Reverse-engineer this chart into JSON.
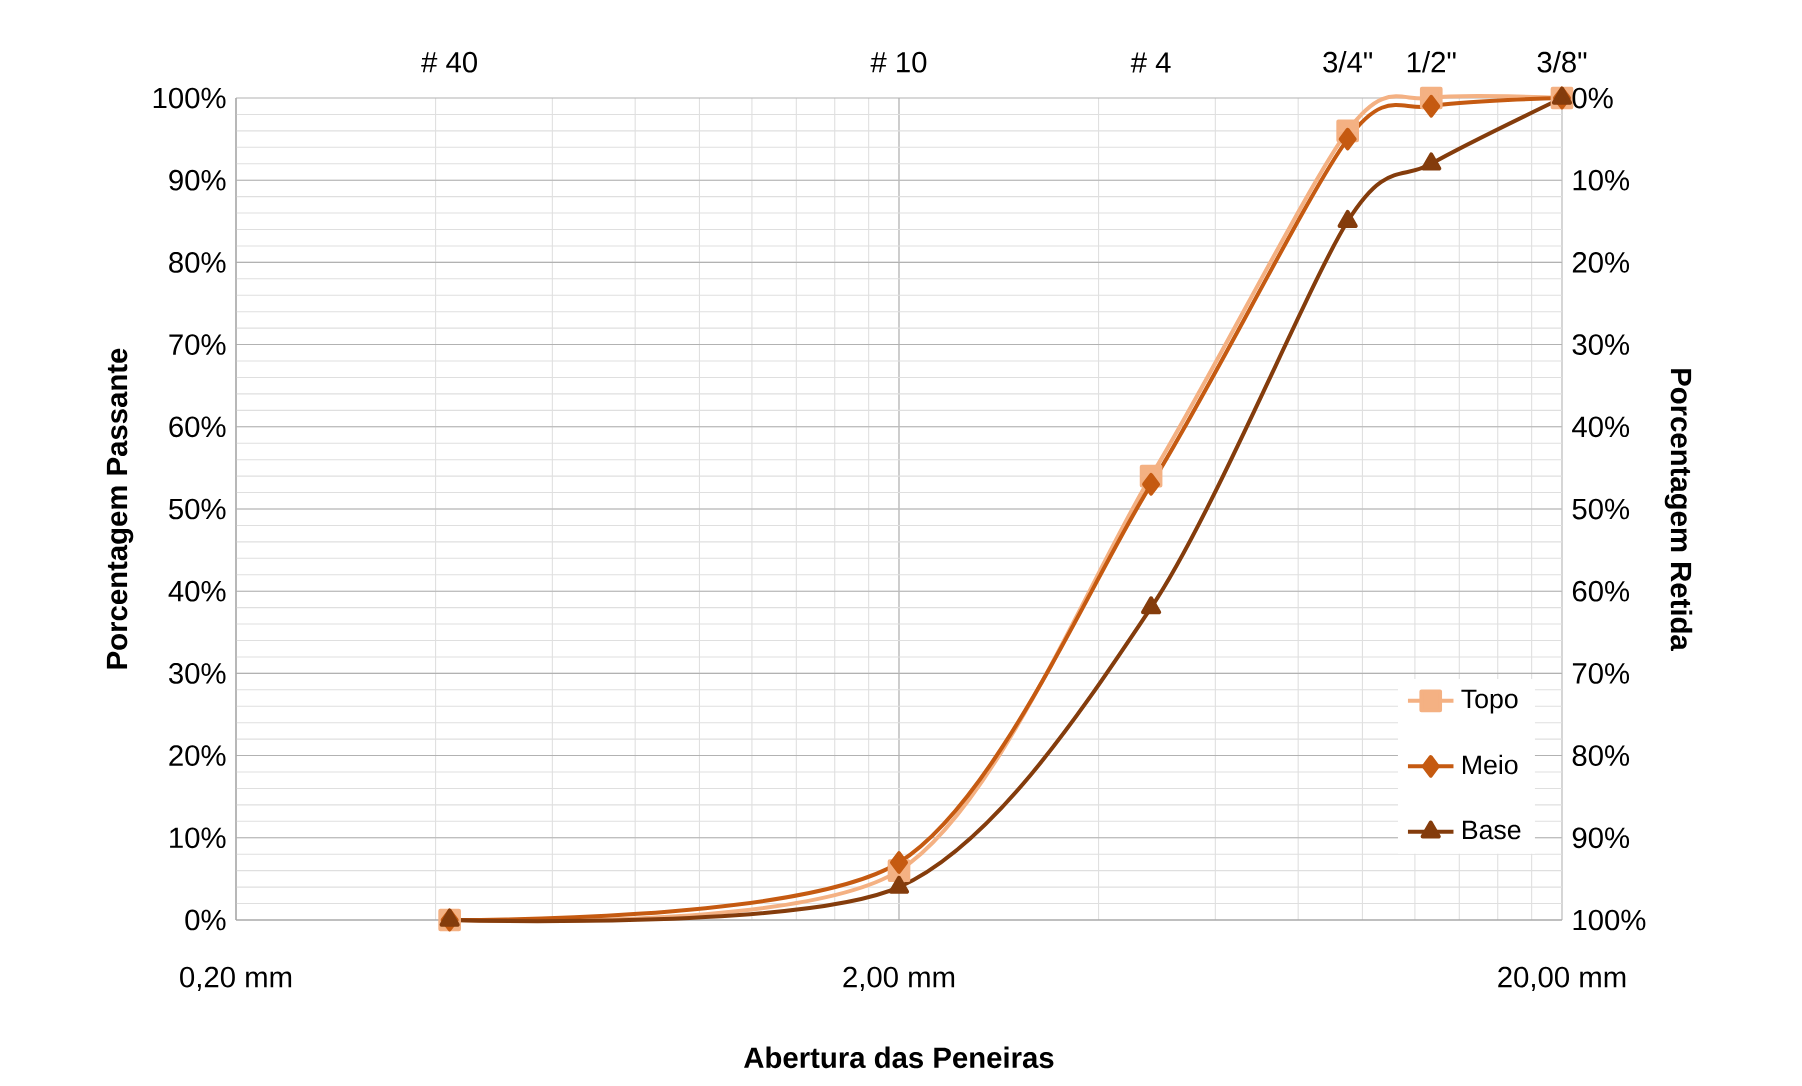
{
  "chart_data": {
    "type": "line",
    "xlabel": "Abertura das Peneiras",
    "ylabel": "Porcentagem Passante",
    "y2label": "Porcentagem Retida",
    "log": "x",
    "x": [
      0.42,
      2.0,
      4.8,
      9.5,
      12.7,
      20
    ],
    "series": [
      {
        "name": "Topo",
        "color": "#f4b183",
        "marker": "square",
        "values": [
          0,
          6,
          54,
          96,
          100,
          100
        ]
      },
      {
        "name": "Meio",
        "color": "#c55a11",
        "marker": "diamond",
        "values": [
          0,
          7,
          53,
          95,
          99,
          100
        ]
      },
      {
        "name": "Base",
        "color": "#843c0c",
        "marker": "triangle",
        "values": [
          0,
          4,
          38,
          85,
          92,
          100
        ]
      }
    ],
    "xlim": [
      0.2,
      20
    ],
    "xticks": [
      {
        "value": 0.2,
        "label": "0,20 mm"
      },
      {
        "value": 2,
        "label": "2,00 mm"
      },
      {
        "value": 20,
        "label": "20,00 mm"
      }
    ],
    "annotations": [
      "# 40",
      "# 10",
      "# 4",
      "3/4\"",
      "1/2\"",
      "3/8\""
    ],
    "ylim": [
      0,
      100
    ],
    "yticks": [
      {
        "value": 0,
        "label": "0%"
      },
      {
        "value": 10,
        "label": "10%"
      },
      {
        "value": 20,
        "label": "20%"
      },
      {
        "value": 30,
        "label": "30%"
      },
      {
        "value": 40,
        "label": "40%"
      },
      {
        "value": 50,
        "label": "50%"
      },
      {
        "value": 60,
        "label": "60%"
      },
      {
        "value": 70,
        "label": "70%"
      },
      {
        "value": 80,
        "label": "80%"
      },
      {
        "value": 90,
        "label": "90%"
      },
      {
        "value": 100,
        "label": "100%"
      }
    ],
    "y2lim": [
      100,
      0
    ],
    "y2ticks": [
      {
        "value": 0,
        "label": "0%"
      },
      {
        "value": 10,
        "label": "10%"
      },
      {
        "value": 20,
        "label": "20%"
      },
      {
        "value": 30,
        "label": "30%"
      },
      {
        "value": 40,
        "label": "40%"
      },
      {
        "value": 50,
        "label": "50%"
      },
      {
        "value": 60,
        "label": "60%"
      },
      {
        "value": 70,
        "label": "70%"
      },
      {
        "value": 80,
        "label": "80%"
      },
      {
        "value": 90,
        "label": "90%"
      },
      {
        "value": 100,
        "label": "100%"
      }
    ],
    "grid": true,
    "legend": "bottom right",
    "line_style": "solid"
  }
}
